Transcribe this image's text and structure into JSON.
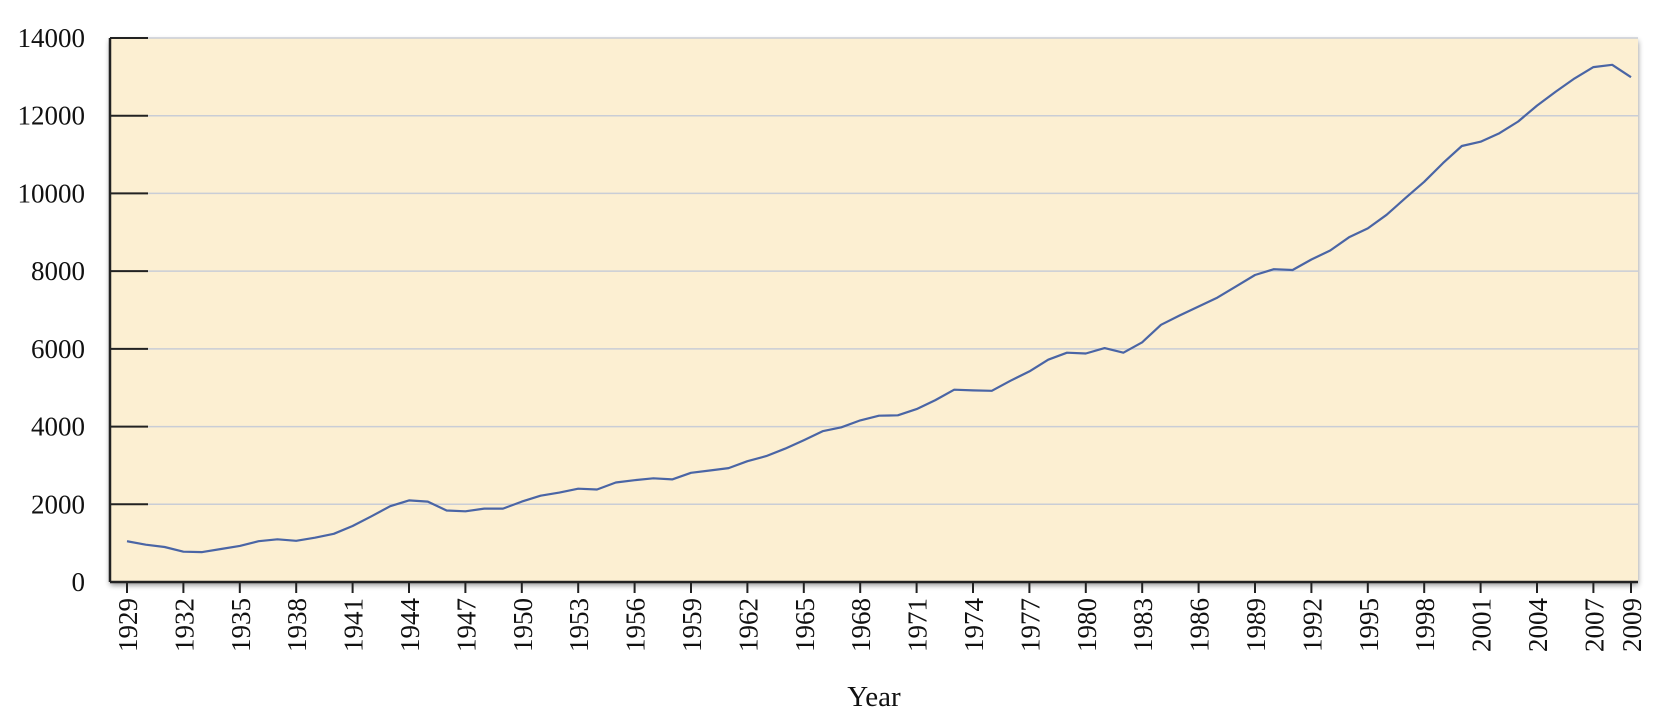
{
  "chart_data": {
    "type": "line",
    "title": "",
    "xlabel": "Year",
    "ylabel": "",
    "xlim": [
      1929,
      2009
    ],
    "ylim": [
      0,
      14000
    ],
    "grid": true,
    "legend": "none",
    "colors": {
      "plot_background": "#fcefd2",
      "line": "#4a65a5",
      "grid": "#c9cdd6",
      "axis": "#222222"
    },
    "yticks": [
      {
        "value": 0,
        "label": "0"
      },
      {
        "value": 2000,
        "label": "2000"
      },
      {
        "value": 4000,
        "label": "4000"
      },
      {
        "value": 6000,
        "label": "6000"
      },
      {
        "value": 8000,
        "label": "8000"
      },
      {
        "value": 10000,
        "label": "10000"
      },
      {
        "value": 12000,
        "label": "12000"
      },
      {
        "value": 14000,
        "label": "14000"
      }
    ],
    "xticks": [
      {
        "value": 1929,
        "label": "1929"
      },
      {
        "value": 1932,
        "label": "1932"
      },
      {
        "value": 1935,
        "label": "1935"
      },
      {
        "value": 1938,
        "label": "1938"
      },
      {
        "value": 1941,
        "label": "1941"
      },
      {
        "value": 1944,
        "label": "1944"
      },
      {
        "value": 1947,
        "label": "1947"
      },
      {
        "value": 1950,
        "label": "1950"
      },
      {
        "value": 1953,
        "label": "1953"
      },
      {
        "value": 1956,
        "label": "1956"
      },
      {
        "value": 1959,
        "label": "1959"
      },
      {
        "value": 1962,
        "label": "1962"
      },
      {
        "value": 1965,
        "label": "1965"
      },
      {
        "value": 1968,
        "label": "1968"
      },
      {
        "value": 1971,
        "label": "1971"
      },
      {
        "value": 1974,
        "label": "1974"
      },
      {
        "value": 1977,
        "label": "1977"
      },
      {
        "value": 1980,
        "label": "1980"
      },
      {
        "value": 1983,
        "label": "1983"
      },
      {
        "value": 1986,
        "label": "1986"
      },
      {
        "value": 1989,
        "label": "1989"
      },
      {
        "value": 1992,
        "label": "1992"
      },
      {
        "value": 1995,
        "label": "1995"
      },
      {
        "value": 1998,
        "label": "1998"
      },
      {
        "value": 2001,
        "label": "2001"
      },
      {
        "value": 2004,
        "label": "2004"
      },
      {
        "value": 2007,
        "label": "2007"
      },
      {
        "value": 2009,
        "label": "2009"
      }
    ],
    "x": [
      1929,
      1930,
      1931,
      1932,
      1933,
      1934,
      1935,
      1936,
      1937,
      1938,
      1939,
      1940,
      1941,
      1942,
      1943,
      1944,
      1945,
      1946,
      1947,
      1948,
      1949,
      1950,
      1951,
      1952,
      1953,
      1954,
      1955,
      1956,
      1957,
      1958,
      1959,
      1960,
      1961,
      1962,
      1963,
      1964,
      1965,
      1966,
      1967,
      1968,
      1969,
      1970,
      1971,
      1972,
      1973,
      1974,
      1975,
      1976,
      1977,
      1978,
      1979,
      1980,
      1981,
      1982,
      1983,
      1984,
      1985,
      1986,
      1987,
      1988,
      1989,
      1990,
      1991,
      1992,
      1993,
      1994,
      1995,
      1996,
      1997,
      1998,
      1999,
      2000,
      2001,
      2002,
      2003,
      2004,
      2005,
      2006,
      2007,
      2008,
      2009
    ],
    "series": [
      {
        "values": [
          1050,
          960,
          900,
          780,
          770,
          850,
          930,
          1050,
          1100,
          1060,
          1140,
          1240,
          1440,
          1690,
          1950,
          2100,
          2070,
          1840,
          1820,
          1890,
          1890,
          2070,
          2220,
          2300,
          2400,
          2380,
          2560,
          2620,
          2670,
          2640,
          2810,
          2870,
          2930,
          3110,
          3240,
          3430,
          3650,
          3880,
          3980,
          4160,
          4280,
          4290,
          4450,
          4680,
          4950,
          4930,
          4920,
          5180,
          5420,
          5720,
          5900,
          5880,
          6020,
          5900,
          6170,
          6620,
          6860,
          7090,
          7320,
          7610,
          7900,
          8050,
          8030,
          8300,
          8530,
          8870,
          9100,
          9450,
          9880,
          10300,
          10780,
          11220,
          11330,
          11550,
          11850,
          12260,
          12620,
          12960,
          13250,
          13310,
          12990
        ]
      }
    ]
  }
}
